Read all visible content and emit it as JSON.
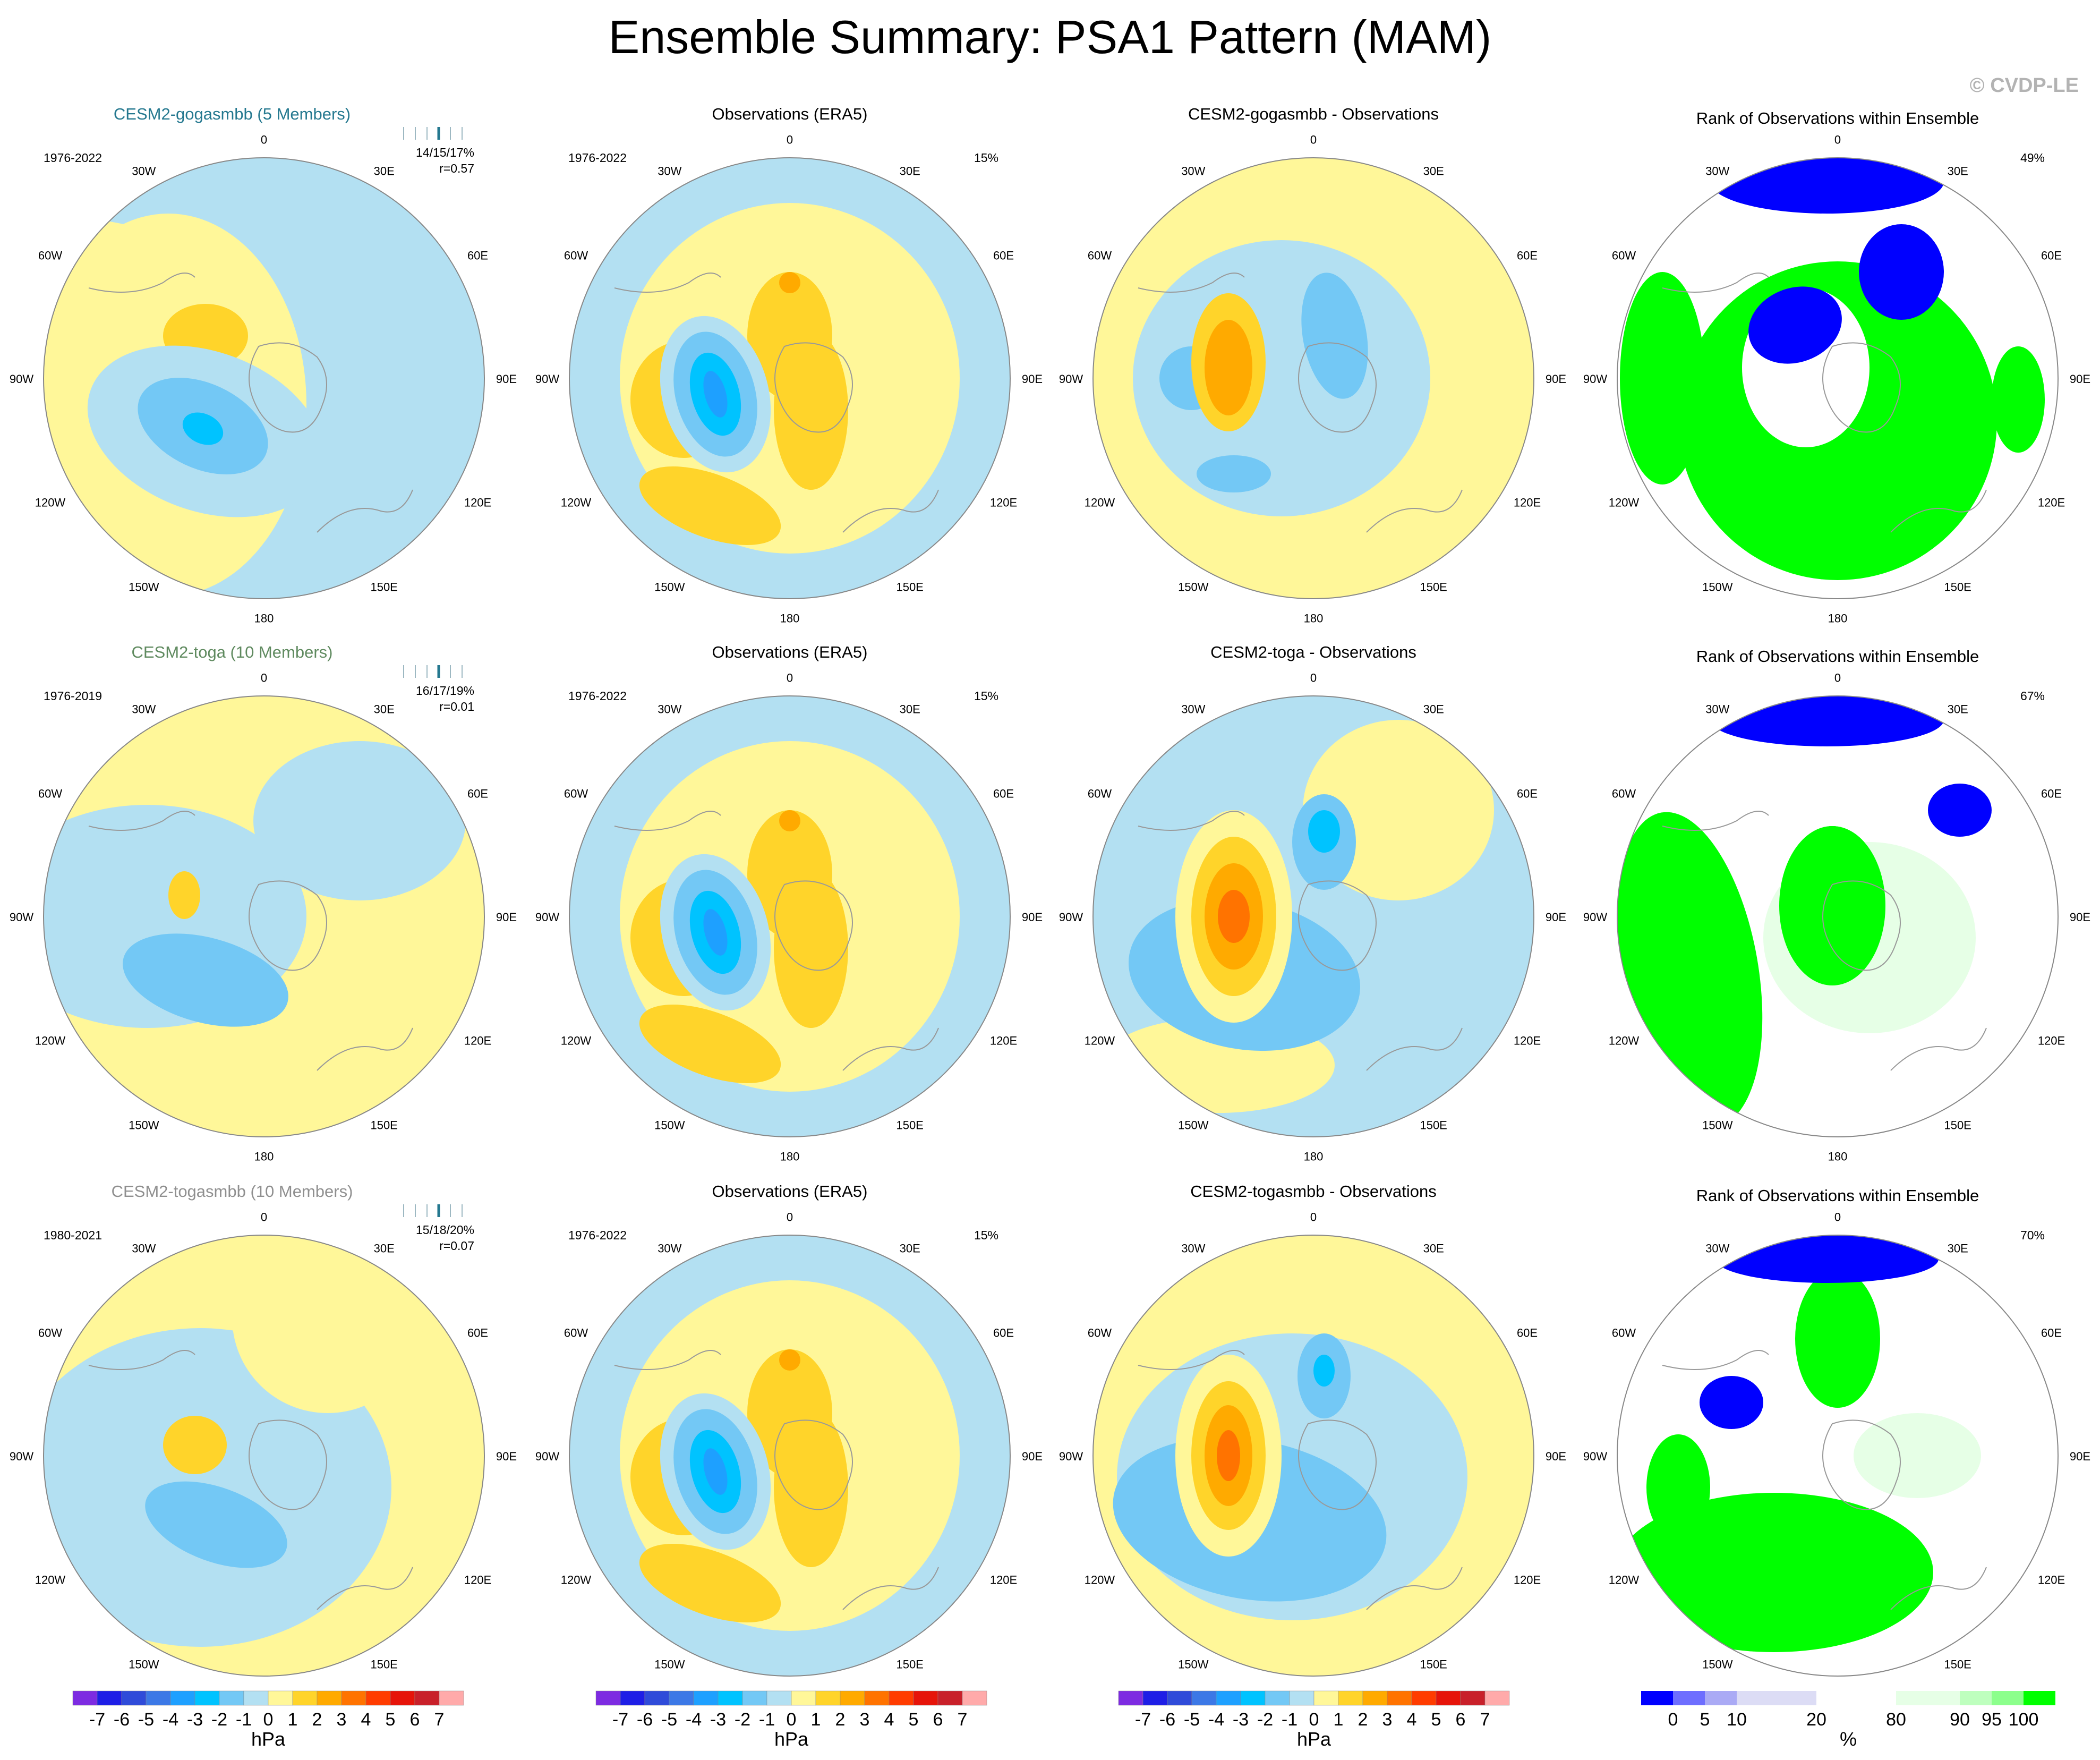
{
  "title": "Ensemble Summary: PSA1 Pattern (MAM)",
  "copyright": "© CVDP-LE",
  "colors": {
    "neg": [
      "#7d2be1",
      "#1e1ee6",
      "#2f4bd9",
      "#3c78e6",
      "#1ea0ff",
      "#00c3ff",
      "#73c8f5",
      "#b3e0f2"
    ],
    "pos": [
      "#fff799",
      "#ffd42a",
      "#ffaa00",
      "#ff7300",
      "#ff3c00",
      "#e6140a",
      "#c8202a",
      "#ffaaaa"
    ],
    "rank": [
      "#0000ff",
      "#6e6eff",
      "#aaaaf5",
      "#dcdcf5",
      "#ffffff",
      "#e6ffe6",
      "#beffbe",
      "#8cff8c",
      "#00ff00"
    ],
    "title_gogasmbb": "#24788f",
    "title_toga": "#5f8a5f",
    "title_togasmbb": "#8f8f8f"
  },
  "longitude_labels": [
    "0",
    "30E",
    "60E",
    "90E",
    "120E",
    "150E",
    "180",
    "150W",
    "120W",
    "90W",
    "60W",
    "30W"
  ],
  "colorbar_hpa": {
    "labels": [
      "-7",
      "-6",
      "-5",
      "-4",
      "-3",
      "-2",
      "-1",
      "0",
      "1",
      "2",
      "3",
      "4",
      "5",
      "6",
      "7"
    ],
    "unit": "hPa"
  },
  "colorbar_rank": {
    "labels": [
      "0",
      "5",
      "10",
      "20",
      "80",
      "90",
      "95",
      "100"
    ],
    "unit": "%"
  },
  "rows": [
    {
      "model": {
        "title": "CESM2-gogasmbb (5 Members)",
        "title_color_key": "title_gogasmbb",
        "period": "1976-2022",
        "stats": "14/15/17%",
        "corr": "r=0.57"
      },
      "obs": {
        "title": "Observations (ERA5)",
        "period": "1976-2022",
        "pct": "15%"
      },
      "diff": {
        "title": "CESM2-gogasmbb - Observations"
      },
      "rank": {
        "title": "Rank of Observations within Ensemble",
        "pct": "49%"
      }
    },
    {
      "model": {
        "title": "CESM2-toga (10 Members)",
        "title_color_key": "title_toga",
        "period": "1976-2019",
        "stats": "16/17/19%",
        "corr": "r=0.01"
      },
      "obs": {
        "title": "Observations (ERA5)",
        "period": "1976-2022",
        "pct": "15%"
      },
      "diff": {
        "title": "CESM2-toga - Observations"
      },
      "rank": {
        "title": "Rank of Observations within Ensemble",
        "pct": "67%"
      }
    },
    {
      "model": {
        "title": "CESM2-togasmbb (10 Members)",
        "title_color_key": "title_togasmbb",
        "period": "1980-2021",
        "stats": "15/18/20%",
        "corr": "r=0.07"
      },
      "obs": {
        "title": "Observations (ERA5)",
        "period": "1976-2022",
        "pct": "15%"
      },
      "diff": {
        "title": "CESM2-togasmbb - Observations"
      },
      "rank": {
        "title": "Rank of Observations within Ensemble",
        "pct": "70%"
      }
    }
  ]
}
